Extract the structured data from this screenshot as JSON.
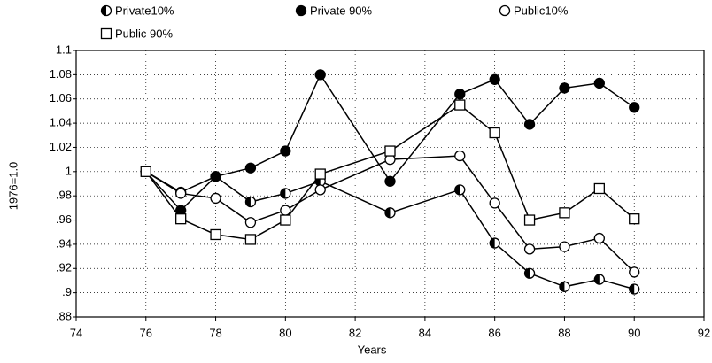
{
  "chart_data": {
    "type": "line",
    "x_label": "Years",
    "y_label": "1976=1.0",
    "x": [
      76,
      77,
      78,
      79,
      80,
      81,
      83,
      85,
      86,
      87,
      88,
      89,
      90
    ],
    "series": [
      {
        "name": "Private10%",
        "color": "#000000",
        "marker": "half",
        "values": [
          1.0,
          0.983,
          0.996,
          0.975,
          0.982,
          0.992,
          0.966,
          0.985,
          0.941,
          0.916,
          0.905,
          0.911,
          0.903
        ]
      },
      {
        "name": "Private 90%",
        "color": "#000000",
        "marker": "filled",
        "values": [
          1.0,
          0.968,
          0.996,
          1.003,
          1.017,
          1.08,
          0.992,
          1.064,
          1.076,
          1.039,
          1.069,
          1.073,
          1.053
        ]
      },
      {
        "name": "Public10%",
        "color": "#000000",
        "marker": "open",
        "values": [
          1.0,
          0.982,
          0.978,
          0.958,
          0.968,
          0.985,
          1.01,
          1.013,
          0.974,
          0.936,
          0.938,
          0.945,
          0.917
        ]
      },
      {
        "name": "Public 90%",
        "color": "#000000",
        "marker": "square",
        "values": [
          1.0,
          0.961,
          0.948,
          0.944,
          0.96,
          0.998,
          1.017,
          1.055,
          1.032,
          0.96,
          0.966,
          0.986,
          0.961
        ]
      }
    ],
    "xlim": [
      74,
      92
    ],
    "xticks": [
      74,
      76,
      78,
      80,
      82,
      84,
      86,
      88,
      90,
      92
    ],
    "ylim": [
      0.88,
      1.1
    ],
    "yticks": [
      {
        "value": 0.88,
        "label": ".88"
      },
      {
        "value": 0.9,
        "label": ".9"
      },
      {
        "value": 0.92,
        "label": ".92"
      },
      {
        "value": 0.94,
        "label": ".94"
      },
      {
        "value": 0.96,
        "label": ".96"
      },
      {
        "value": 0.98,
        "label": ".98"
      },
      1,
      1.02,
      1.04,
      1.06,
      1.08,
      1.1
    ],
    "grid": true,
    "legend": "top"
  }
}
